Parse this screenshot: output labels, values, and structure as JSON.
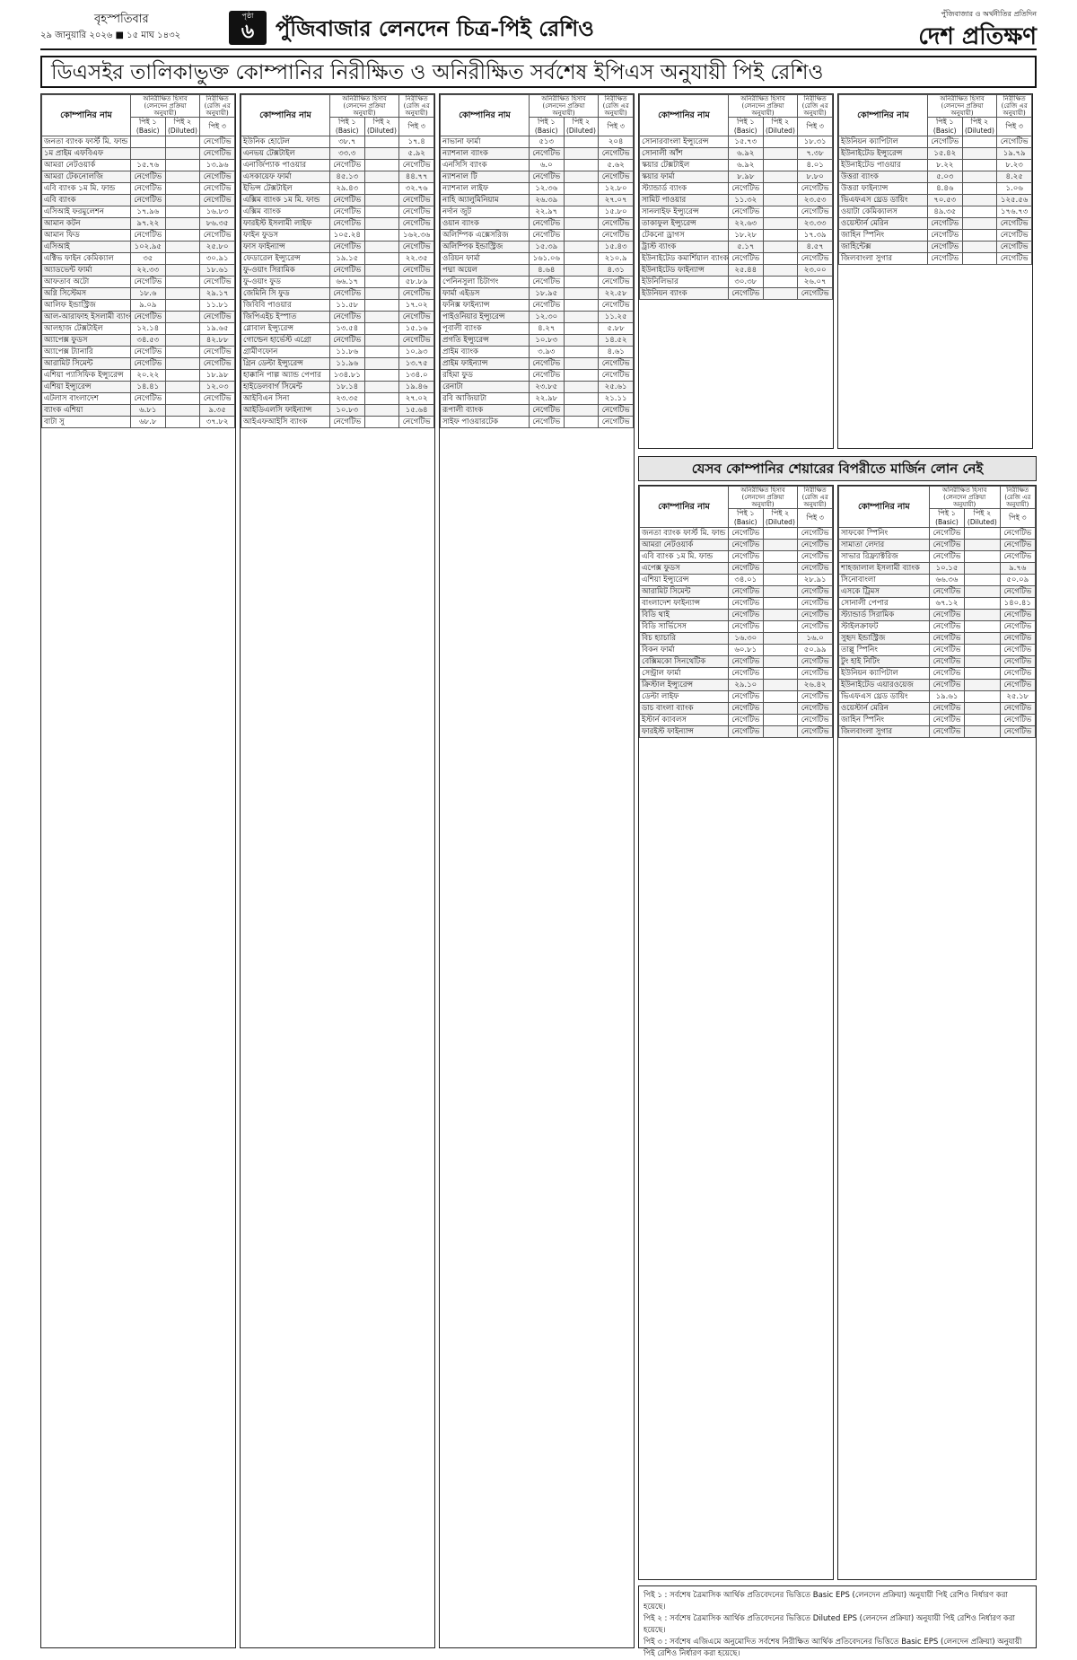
{
  "header": {
    "day": "বৃহস্পতিবার",
    "date": "২৯ জানুয়ারি ২০২৬ ■ ১৫ মাঘ ১৪৩২",
    "page_label": "পৃষ্ঠা",
    "page_number": "৬",
    "section_title": "পুঁজিবাজার লেনদেন চিত্র-পিই রেশিও",
    "tagline": "পুঁজিবাজার ও অর্থনীতির প্রতিদিন",
    "logo": "দেশ প্রতিক্ষণ"
  },
  "title": "ডিএসইর তালিকাভুক্ত কোম্পানির নিরীক্ষিত ও অনিরীক্ষিত সর্বশেষ ইপিএস অনুযায়ী পিই রেশিও",
  "table_header": {
    "company": "কোম্পানির নাম",
    "unaudited": "অনিরীক্ষিত হিসাব (লেনদেন প্রক্রিয়া অনুযায়ী)",
    "audited": "নিরীক্ষিত (রেজি এর অনুযায়ী)",
    "pe1": "পিই ১",
    "pe1_en": "(Basic)",
    "pe2": "পিই ২",
    "pe2_en": "(Diluted)",
    "pe3": "পিই ৩"
  },
  "columns": [
    {
      "rows": [
        [
          "জনতা ব্যাংক ফার্স্ট মি. ফান্ড",
          "",
          "",
          "নেগেটিভ"
        ],
        [
          "১ম প্রাইম এফবিএফ",
          "",
          "",
          "নেগেটিভ"
        ],
        [
          "আমরা নেটওয়ার্ক",
          "১৫.৭৬",
          "",
          "১৩.৯৬"
        ],
        [
          "আমরা টেকনোলজি",
          "নেগেটিভ",
          "",
          "নেগেটিভ"
        ],
        [
          "এবি ব্যাংক ১ম মি. ফান্ড",
          "নেগেটিভ",
          "",
          "নেগেটিভ"
        ],
        [
          "এবি ব্যাংক",
          "নেগেটিভ",
          "",
          "নেগেটিভ"
        ],
        [
          "এসিআই ফরমুলেশন",
          "১৭.৯৬",
          "",
          "১৬.৮৩"
        ],
        [
          "আমান কটন",
          "৯৭.২২",
          "",
          "৮৬.৩৫"
        ],
        [
          "আমান ফিড",
          "নেগেটিভ",
          "",
          "নেগেটিভ"
        ],
        [
          "এসিআই",
          "১০২.৯৫",
          "",
          "২৫.৮০"
        ],
        [
          "এক্টিভ ফাইন কেমিক্যাল",
          "৩৫",
          "",
          "৩০.৯১"
        ],
        [
          "অ্যাডভেন্ট ফার্মা",
          "২২.৩৩",
          "",
          "১৮.৬১"
        ],
        [
          "আফতাব অটো",
          "নেগেটিভ",
          "",
          "নেগেটিভ"
        ],
        [
          "অগ্নি সিস্টেমস",
          "১৮.৬",
          "",
          "২৯.১৭"
        ],
        [
          "আলিফ ইন্ডাস্ট্রিজ",
          "৯.০৯",
          "",
          "১১.৮১"
        ],
        [
          "আল-আরাফাহ ইসলামী ব্যাংক",
          "নেগেটিভ",
          "",
          "নেগেটিভ"
        ],
        [
          "আলহাজ টেক্সটাইল",
          "১২.১৪",
          "",
          "১৯.৬৫"
        ],
        [
          "অ্যাপেক্স ফুডস",
          "৩৪.৫৩",
          "",
          "৪২.৮৮"
        ],
        [
          "অ্যাপেক্স ট্যানারি",
          "নেগেটিভ",
          "",
          "নেগেটিভ"
        ],
        [
          "আরামিট সিমেন্ট",
          "নেগেটিভ",
          "",
          "নেগেটিভ"
        ],
        [
          "এশিয়া প্যাসিফিক ইন্স্যুরেন্স",
          "২০.২২",
          "",
          "১৮.৯৮"
        ],
        [
          "এশিয়া ইন্স্যুরেন্স",
          "১৪.৪১",
          "",
          "১২.০৩"
        ],
        [
          "এটলাস বাংলাদেশ",
          "নেগেটিভ",
          "",
          "নেগেটিভ"
        ],
        [
          "ব্যাংক এশিয়া",
          "৬.৮১",
          "",
          "৯.৩৫"
        ],
        [
          "বাটা সু",
          "৬৮.৮",
          "",
          "৩৭.৮২"
        ]
      ]
    },
    {
      "rows": [
        [
          "ইউনিক হোটেল",
          "৩৮.৭",
          "",
          "১৭.৪"
        ],
        [
          "এনভয় টেক্সটাইল",
          "৩৩.৩",
          "",
          "৫.৯২"
        ],
        [
          "এনার্জিপ্যাক পাওয়ার",
          "নেগেটিভ",
          "",
          "নেগেটিভ"
        ],
        [
          "এসকায়েফ ফার্মা",
          "৪৫.১৩",
          "",
          "৪৪.৭৭"
        ],
        [
          "ইভিন্স টেক্সটাইল",
          "২৯.৪৩",
          "",
          "৩২.৭৬"
        ],
        [
          "এক্সিম ব্যাংক ১ম মি. ফান্ড",
          "নেগেটিভ",
          "",
          "নেগেটিভ"
        ],
        [
          "এক্সিম ব্যাংক",
          "নেগেটিভ",
          "",
          "নেগেটিভ"
        ],
        [
          "ফারইস্ট ইসলামী লাইফ",
          "নেগেটিভ",
          "",
          "নেগেটিভ"
        ],
        [
          "ফাইন ফুডস",
          "১০৫.২৪",
          "",
          "১৬২.৩৬"
        ],
        [
          "ফাস ফাইন্যান্স",
          "নেগেটিভ",
          "",
          "নেগেটিভ"
        ],
        [
          "ফেডারেল ইন্স্যুরেন্স",
          "১৯.১৫",
          "",
          "২২.৩৫"
        ],
        [
          "ফু-ওয়াং সিরামিক",
          "নেগেটিভ",
          "",
          "নেগেটিভ"
        ],
        [
          "ফু-ওয়াং ফুড",
          "৬৬.১৭",
          "",
          "৫৮.৮৯"
        ],
        [
          "জেমিনি সি ফুড",
          "নেগেটিভ",
          "",
          "নেগেটিভ"
        ],
        [
          "জিবিবি পাওয়ার",
          "১১.৫৮",
          "",
          "১৭.০২"
        ],
        [
          "জিপিএইচ ইস্পাত",
          "নেগেটিভ",
          "",
          "নেগেটিভ"
        ],
        [
          "গ্লোবাল ইন্স্যুরেন্স",
          "১৩.৫৪",
          "",
          "১৫.১৬"
        ],
        [
          "গোল্ডেন হার্ভেস্ট এগ্রো",
          "নেগেটিভ",
          "",
          "নেগেটিভ"
        ],
        [
          "গ্রামীণফোন",
          "১১.৮৬",
          "",
          "১০.৯৩"
        ],
        [
          "গ্রিন ডেল্টা ইন্স্যুরেন্স",
          "১১.৯৬",
          "",
          "১৩.৭৫"
        ],
        [
          "হাক্কানি পাল্প অ্যান্ড পেপার",
          "১৩৪.৮১",
          "",
          "১৩৪.০"
        ],
        [
          "হাইডেলবার্গ সিমেন্ট",
          "১৮.১৪",
          "",
          "১৯.৪৬"
        ],
        [
          "আইবিএন সিনা",
          "২৩.৩৫",
          "",
          "২৭.০২"
        ],
        [
          "আইডিএলসি ফাইন্যান্স",
          "১০.৮৩",
          "",
          "১৫.৬৪"
        ],
        [
          "আইএফআইসি ব্যাংক",
          "নেগেটিভ",
          "",
          "নেগেটিভ"
        ]
      ]
    },
    {
      "rows": [
        [
          "নাভানা ফার্মা",
          "৫১৩",
          "",
          "২০৪"
        ],
        [
          "ন্যাশনাল ব্যাংক",
          "নেগেটিভ",
          "",
          "নেগেটিভ"
        ],
        [
          "এনসিসি ব্যাংক",
          "৬.০",
          "",
          "৫.৬২"
        ],
        [
          "ন্যাশনাল টি",
          "নেগেটিভ",
          "",
          "নেগেটিভ"
        ],
        [
          "ন্যাশনাল লাইফ",
          "১২.৩৬",
          "",
          "১২.৮০"
        ],
        [
          "নাহি অ্যালুমিনিয়াম",
          "২৬.৩৯",
          "",
          "২৭.০৭"
        ],
        [
          "নর্দান জুট",
          "২২.৯৭",
          "",
          "১৫.৮০"
        ],
        [
          "ওয়ান ব্যাংক",
          "নেগেটিভ",
          "",
          "নেগেটিভ"
        ],
        [
          "অলিম্পিক এক্সেসরিজ",
          "নেগেটিভ",
          "",
          "নেগেটিভ"
        ],
        [
          "অলিম্পিক ইন্ডাস্ট্রিজ",
          "১৫.৩৯",
          "",
          "১৫.৪৩"
        ],
        [
          "ওরিয়ন ফার্মা",
          "১৬১.০৬",
          "",
          "২১০.৯"
        ],
        [
          "পদ্মা অয়েল",
          "৪.৬৪",
          "",
          "৪.৩১"
        ],
        [
          "পেনিনসুলা চিটাগং",
          "নেগেটিভ",
          "",
          "নেগেটিভ"
        ],
        [
          "ফার্মা এইডস",
          "১৮.৯৫",
          "",
          "২২.৫৮"
        ],
        [
          "ফনিক্স ফাইন্যান্স",
          "নেগেটিভ",
          "",
          "নেগেটিভ"
        ],
        [
          "পাইওনিয়ার ইন্স্যুরেন্স",
          "১২.৩০",
          "",
          "১১.২৫"
        ],
        [
          "পূবালী ব্যাংক",
          "৪.২৭",
          "",
          "৫.৮৮"
        ],
        [
          "প্রগতি ইন্স্যুরেন্স",
          "১০.৮৩",
          "",
          "১৪.৫২"
        ],
        [
          "প্রাইম ব্যাংক",
          "৩.৯৩",
          "",
          "৪.৬১"
        ],
        [
          "প্রাইম ফাইন্যান্স",
          "নেগেটিভ",
          "",
          "নেগেটিভ"
        ],
        [
          "রহিমা ফুড",
          "নেগেটিভ",
          "",
          "নেগেটিভ"
        ],
        [
          "রেনাটা",
          "২৩.৮৫",
          "",
          "২৫.৬১"
        ],
        [
          "রবি আজিয়াটা",
          "২২.৯৮",
          "",
          "২১.১১"
        ],
        [
          "রূপালী ব্যাংক",
          "নেগেটিভ",
          "",
          "নেগেটিভ"
        ],
        [
          "সাইফ পাওয়ারটেক",
          "নেগেটিভ",
          "",
          "নেগেটিভ"
        ]
      ]
    },
    {
      "rows": [
        [
          "সোনারবাংলা ইন্স্যুরেন্স",
          "১৫.৭৩",
          "",
          "১৮.৩১"
        ],
        [
          "সোনালী আঁশ",
          "৬.৯২",
          "",
          "৭.৩৮"
        ],
        [
          "স্কয়ার টেক্সটাইল",
          "৬.৯২",
          "",
          "৪.০১"
        ],
        [
          "স্কয়ার ফার্মা",
          "৮.৯৮",
          "",
          "৮.৮০"
        ],
        [
          "স্ট্যান্ডার্ড ব্যাংক",
          "নেগেটিভ",
          "",
          "নেগেটিভ"
        ],
        [
          "সামিট পাওয়ার",
          "১১.৩২",
          "",
          "২৩.৫৩"
        ],
        [
          "সানলাইফ ইন্স্যুরেন্স",
          "নেগেটিভ",
          "",
          "নেগেটিভ"
        ],
        [
          "তাকাফুল ইন্স্যুরেন্স",
          "২২.৬৩",
          "",
          "২৩.৩৩"
        ],
        [
          "টেকনো ড্রাগস",
          "১৮.২৮",
          "",
          "১৭.৩৯"
        ],
        [
          "ট্রাস্ট ব্যাংক",
          "৫.১৭",
          "",
          "৪.৫৭"
        ],
        [
          "ইউনাইটেড কমার্শিয়াল ব্যাংক",
          "নেগেটিভ",
          "",
          "নেগেটিভ"
        ],
        [
          "ইউনাইটেড ফাইন্যান্স",
          "২৫.৪৪",
          "",
          "২৩.০০"
        ],
        [
          "ইউনিলিভার",
          "৩০.৩৮",
          "",
          "২৬.০৭"
        ],
        [
          "ইউনিয়ন ব্যাংক",
          "নেগেটিভ",
          "",
          "নেগেটিভ"
        ]
      ]
    },
    {
      "rows": [
        [
          "ইউনিয়ন ক্যাপিটাল",
          "নেগেটিভ",
          "",
          "নেগেটিভ"
        ],
        [
          "ইউনাইটেড ইন্স্যুরেন্স",
          "১৫.৪২",
          "",
          "১৯.৭৯"
        ],
        [
          "ইউনাইটেড পাওয়ার",
          "৮.২২",
          "",
          "৮.২৩"
        ],
        [
          "উত্তরা ব্যাংক",
          "৫.০৩",
          "",
          "৪.২৫"
        ],
        [
          "উত্তরা ফাইন্যান্স",
          "৪.৪৬",
          "",
          "১.০৬"
        ],
        [
          "ভিএফএস থ্রেড ডায়িং",
          "৭০.৫৩",
          "",
          "১২৫.৫৬"
        ],
        [
          "ওয়াটা কেমিক্যালস",
          "৪৯.৩৫",
          "",
          "১৭৬.৭৩"
        ],
        [
          "ওয়েস্টার্ন মেরিন",
          "নেগেটিভ",
          "",
          "নেগেটিভ"
        ],
        [
          "জাহিন স্পিনিং",
          "নেগেটিভ",
          "",
          "নেগেটিভ"
        ],
        [
          "জাহিন্টেক্স",
          "নেগেটিভ",
          "",
          "নেগেটিভ"
        ],
        [
          "জিলবাংলা সুগার",
          "নেগেটিভ",
          "",
          "নেগেটিভ"
        ]
      ]
    }
  ],
  "margin": {
    "title": "যেসব কোম্পানির শেয়ারের বিপরীতে মার্জিন লোন নেই",
    "columns": [
      {
        "rows": [
          [
            "জনতা ব্যাংক ফার্স্ট মি. ফান্ড",
            "নেগেটিভ",
            "",
            "নেগেটিভ"
          ],
          [
            "আমরা নেটওয়ার্ক",
            "নেগেটিভ",
            "",
            "নেগেটিভ"
          ],
          [
            "এবি ব্যাংক ১ম মি. ফান্ড",
            "নেগেটিভ",
            "",
            "নেগেটিভ"
          ],
          [
            "এপেক্স ফুডস",
            "নেগেটিভ",
            "",
            "নেগেটিভ"
          ],
          [
            "এশিয়া ইন্স্যুরেন্স",
            "৩৪.০১",
            "",
            "২৮.৯১"
          ],
          [
            "আরামিট সিমেন্ট",
            "নেগেটিভ",
            "",
            "নেগেটিভ"
          ],
          [
            "বাংলাদেশ ফাইন্যান্স",
            "নেগেটিভ",
            "",
            "নেগেটিভ"
          ],
          [
            "বিডি থাই",
            "নেগেটিভ",
            "",
            "নেগেটিভ"
          ],
          [
            "বিডি সার্ভিসেস",
            "নেগেটিভ",
            "",
            "নেগেটিভ"
          ],
          [
            "বিচ হ্যাচারি",
            "১৬.৩০",
            "",
            "১৬.০"
          ],
          [
            "বিকন ফার্মা",
            "৬০.৮১",
            "",
            "৫০.৯৯"
          ],
          [
            "বেক্সিমকো সিনথেটিক",
            "নেগেটিভ",
            "",
            "নেগেটিভ"
          ],
          [
            "সেন্ট্রাল ফার্মা",
            "নেগেটিভ",
            "",
            "নেগেটিভ"
          ],
          [
            "ক্রিস্টাল ইন্স্যুরেন্স",
            "২৯.১০",
            "",
            "২৬.৪২"
          ],
          [
            "ডেল্টা লাইফ",
            "নেগেটিভ",
            "",
            "নেগেটিভ"
          ],
          [
            "ডাচ বাংলা ব্যাংক",
            "নেগেটিভ",
            "",
            "নেগেটিভ"
          ],
          [
            "ইস্টার্ন ক্যাবলস",
            "নেগেটিভ",
            "",
            "নেগেটিভ"
          ],
          [
            "ফারইস্ট ফাইন্যান্স",
            "নেগেটিভ",
            "",
            "নেগেটিভ"
          ]
        ]
      },
      {
        "rows": [
          [
            "সাফকো স্পিনিং",
            "নেগেটিভ",
            "",
            "নেগেটিভ"
          ],
          [
            "সামাতা লেদার",
            "নেগেটিভ",
            "",
            "নেগেটিভ"
          ],
          [
            "সাভার রিফ্র্যাক্টরিজ",
            "নেগেটিভ",
            "",
            "নেগেটিভ"
          ],
          [
            "শাহজালাল ইসলামী ব্যাংক",
            "১০.১৫",
            "",
            "৯.৭৬"
          ],
          [
            "সিনোবাংলা",
            "৬৬.৩৬",
            "",
            "৫০.০৯"
          ],
          [
            "এসকে ট্রিমস",
            "নেগেটিভ",
            "",
            "নেগেটিভ"
          ],
          [
            "সোনালী পেপার",
            "৬৭.১২",
            "",
            "১৪০.৪১"
          ],
          [
            "স্ট্যান্ডার্ড সিরামিক",
            "নেগেটিভ",
            "",
            "নেগেটিভ"
          ],
          [
            "স্টাইলক্রাফট",
            "নেগেটিভ",
            "",
            "নেগেটিভ"
          ],
          [
            "সুহৃদ ইন্ডাস্ট্রিজ",
            "নেগেটিভ",
            "",
            "নেগেটিভ"
          ],
          [
            "তাল্লু স্পিনিং",
            "নেগেটিভ",
            "",
            "নেগেটিভ"
          ],
          [
            "টুং হাই নিটিং",
            "নেগেটিভ",
            "",
            "নেগেটিভ"
          ],
          [
            "ইউনিয়ন ক্যাপিটাল",
            "নেগেটিভ",
            "",
            "নেগেটিভ"
          ],
          [
            "ইউনাইটেড এয়ারওয়েজ",
            "নেগেটিভ",
            "",
            "নেগেটিভ"
          ],
          [
            "ভিএফএস থ্রেড ডায়িং",
            "১৯.৬১",
            "",
            "২৫.১৮"
          ],
          [
            "ওয়েস্টার্ন মেরিন",
            "নেগেটিভ",
            "",
            "নেগেটিভ"
          ],
          [
            "জাহিন স্পিনিং",
            "নেগেটিভ",
            "",
            "নেগেটিভ"
          ],
          [
            "জিলবাংলা সুগার",
            "নেগেটিভ",
            "",
            "নেগেটিভ"
          ]
        ]
      }
    ]
  },
  "footnotes": [
    "পিই ১ : সর্বশেষ ত্রৈমাসিক আর্থিক প্রতিবেদনের ভিত্তিতে Basic EPS (লেনদেন প্রক্রিয়া) অনুযায়ী পিই রেশিও নির্ধারণ করা হয়েছে।",
    "পিই ২ : সর্বশেষ ত্রৈমাসিক আর্থিক প্রতিবেদনের ভিত্তিতে Diluted EPS (লেনদেন প্রক্রিয়া) অনুযায়ী পিই রেশিও নির্ধারণ করা হয়েছে।",
    "পিই ৩ : সর্বশেষ এজিএমে অনুমোদিত সর্বশেষ নিরীক্ষিত আর্থিক প্রতিবেদনের ভিত্তিতে Basic EPS (লেনদেন প্রক্রিয়া) অনুযায়ী পিই রেশিও নির্ধারণ করা হয়েছে।"
  ]
}
